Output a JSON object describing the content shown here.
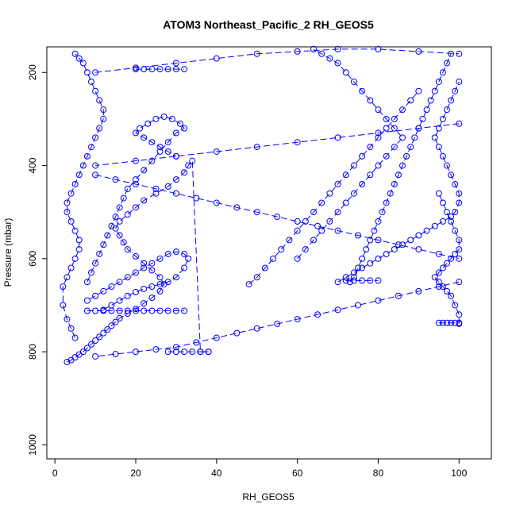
{
  "chart_data": {
    "type": "scatter",
    "title": "ATOM3 Northeast_Pacific_2 RH_GEOS5",
    "xlabel": "RH_GEOS5",
    "ylabel": "Pressure (mbar)",
    "xlim": [
      -2,
      108
    ],
    "ylim": [
      1030,
      145
    ],
    "y_reversed": true,
    "x_ticks": [
      0,
      20,
      40,
      60,
      80,
      100
    ],
    "y_ticks": [
      200,
      400,
      600,
      800,
      1000
    ],
    "grid": false,
    "marker": "open-circle",
    "color": "#0000ff",
    "series": [
      {
        "x": [
          3,
          4,
          5,
          6,
          7,
          8,
          9,
          10,
          11,
          12,
          13,
          14,
          15,
          16,
          18,
          20,
          22,
          24,
          26,
          27,
          26,
          24,
          22,
          20,
          18,
          17,
          16,
          15,
          16,
          18,
          20,
          22,
          25,
          28,
          30,
          32,
          33,
          34,
          36,
          38
        ],
        "y": [
          822,
          818,
          812,
          806,
          800,
          792,
          784,
          776,
          768,
          760,
          752,
          744,
          736,
          728,
          718,
          708,
          696,
          684,
          670,
          655,
          640,
          625,
          610,
          595,
          580,
          565,
          550,
          535,
          520,
          505,
          490,
          475,
          460,
          445,
          430,
          415,
          400,
          390,
          800,
          800
        ]
      },
      {
        "x": [
          5,
          4,
          3,
          2,
          2,
          3,
          4,
          5,
          6,
          6,
          5,
          4,
          3,
          3,
          4,
          5,
          6,
          7,
          8,
          9,
          10,
          11,
          12,
          12,
          11,
          10,
          9,
          8,
          7,
          6,
          5
        ],
        "y": [
          770,
          750,
          730,
          700,
          660,
          640,
          620,
          600,
          580,
          560,
          540,
          520,
          500,
          480,
          460,
          440,
          420,
          400,
          380,
          360,
          340,
          320,
          300,
          280,
          260,
          240,
          220,
          200,
          180,
          170,
          160
        ]
      },
      {
        "x": [
          8,
          9,
          10,
          11,
          12,
          13,
          14,
          15,
          16,
          17,
          18,
          20,
          22,
          24,
          26,
          28,
          30,
          32,
          31,
          29,
          27,
          25,
          23,
          21,
          20,
          22,
          24,
          26,
          28,
          30
        ],
        "y": [
          650,
          630,
          610,
          590,
          570,
          550,
          530,
          510,
          490,
          470,
          450,
          430,
          410,
          390,
          370,
          350,
          330,
          320,
          310,
          300,
          295,
          300,
          310,
          320,
          330,
          340,
          350,
          360,
          370,
          380
        ]
      },
      {
        "x": [
          12,
          14,
          16,
          18,
          20,
          22,
          24,
          26,
          28,
          30,
          32,
          33,
          32,
          30,
          28,
          26,
          24,
          22,
          20,
          18,
          16,
          14,
          12,
          10,
          8
        ],
        "y": [
          710,
          700,
          690,
          680,
          672,
          665,
          660,
          655,
          650,
          640,
          620,
          600,
          590,
          585,
          590,
          600,
          610,
          620,
          630,
          640,
          650,
          660,
          670,
          680,
          690
        ]
      },
      {
        "x": [
          70,
          72,
          74,
          76,
          78,
          80,
          82,
          84,
          86,
          88,
          90,
          92,
          94,
          96,
          98,
          99,
          100,
          100,
          99,
          98,
          97,
          96,
          95,
          94,
          95,
          96,
          97,
          98,
          99,
          100
        ],
        "y": [
          650,
          640,
          630,
          620,
          610,
          600,
          590,
          580,
          570,
          560,
          550,
          540,
          530,
          520,
          510,
          500,
          480,
          460,
          440,
          420,
          400,
          380,
          360,
          340,
          320,
          300,
          280,
          260,
          240,
          220
        ]
      },
      {
        "x": [
          100,
          100,
          99,
          98,
          97,
          96,
          95,
          94,
          95,
          96,
          97,
          98,
          99,
          100,
          100,
          99,
          98,
          97,
          96,
          95
        ],
        "y": [
          740,
          720,
          700,
          680,
          670,
          660,
          650,
          640,
          630,
          620,
          610,
          600,
          590,
          580,
          560,
          540,
          520,
          500,
          480,
          460
        ]
      },
      {
        "x": [
          73,
          74,
          75,
          76,
          77,
          78,
          79,
          80,
          81,
          82,
          83,
          84,
          85,
          86,
          87,
          88,
          89,
          90,
          91,
          92,
          93,
          94,
          95,
          96,
          97,
          98
        ],
        "y": [
          650,
          640,
          620,
          600,
          580,
          560,
          540,
          520,
          500,
          480,
          460,
          440,
          420,
          400,
          380,
          360,
          340,
          320,
          300,
          280,
          260,
          240,
          220,
          200,
          180,
          160
        ]
      },
      {
        "x": [
          60,
          62,
          64,
          66,
          68,
          70,
          72,
          74,
          76,
          78,
          80,
          82,
          84,
          86,
          84,
          82,
          80,
          78,
          76,
          74,
          72,
          70,
          68,
          66,
          64
        ],
        "y": [
          600,
          580,
          560,
          540,
          520,
          500,
          480,
          460,
          440,
          420,
          400,
          380,
          360,
          340,
          320,
          300,
          280,
          260,
          240,
          220,
          200,
          180,
          170,
          160,
          150
        ]
      },
      {
        "x": [
          48,
          50,
          52,
          54,
          56,
          58,
          60,
          62,
          64,
          66,
          68,
          70,
          72,
          74,
          76,
          78,
          80,
          82,
          84,
          86,
          88,
          90
        ],
        "y": [
          655,
          640,
          620,
          600,
          580,
          560,
          540,
          520,
          500,
          480,
          460,
          440,
          420,
          400,
          380,
          360,
          340,
          320,
          300,
          280,
          260,
          240
        ]
      },
      {
        "x": [
          10,
          15,
          20,
          25,
          30,
          35,
          40,
          45,
          50,
          55,
          60,
          65,
          70,
          75,
          80,
          85,
          90,
          95,
          100
        ],
        "y": [
          420,
          430,
          440,
          450,
          460,
          470,
          480,
          490,
          500,
          510,
          520,
          530,
          540,
          550,
          560,
          570,
          580,
          590,
          600
        ]
      },
      {
        "x": [
          100,
          95,
          90,
          85,
          80,
          75,
          70,
          65,
          60,
          55,
          50,
          45,
          40,
          35,
          30,
          25,
          20,
          15,
          10
        ],
        "y": [
          650,
          660,
          670,
          680,
          690,
          700,
          710,
          720,
          730,
          740,
          750,
          760,
          770,
          780,
          790,
          795,
          800,
          805,
          810
        ]
      },
      {
        "x": [
          10,
          20,
          30,
          40,
          50,
          60,
          70,
          80,
          90,
          100
        ],
        "y": [
          200,
          190,
          180,
          170,
          160,
          155,
          150,
          150,
          155,
          160
        ]
      },
      {
        "x": [
          100,
          90,
          80,
          70,
          60,
          50,
          40,
          30,
          20,
          10
        ],
        "y": [
          310,
          320,
          330,
          340,
          350,
          360,
          370,
          380,
          390,
          400
        ]
      },
      {
        "x": [
          20,
          22,
          24,
          26,
          28,
          30,
          32
        ],
        "y": [
          193,
          193,
          193,
          193,
          193,
          193,
          193
        ]
      },
      {
        "x": [
          28,
          30,
          32,
          34,
          36,
          38
        ],
        "y": [
          800,
          800,
          800,
          800,
          800,
          800
        ]
      },
      {
        "x": [
          8,
          10,
          12,
          14,
          16,
          18,
          20,
          22,
          24,
          26,
          28,
          30,
          32
        ],
        "y": [
          712,
          712,
          712,
          712,
          712,
          712,
          712,
          712,
          712,
          712,
          712,
          712,
          712
        ]
      },
      {
        "x": [
          72,
          74,
          76,
          78,
          80
        ],
        "y": [
          647,
          647,
          647,
          647,
          647
        ]
      },
      {
        "x": [
          95,
          96,
          97,
          98,
          99,
          100
        ],
        "y": [
          738,
          738,
          738,
          738,
          738,
          738
        ]
      }
    ]
  }
}
